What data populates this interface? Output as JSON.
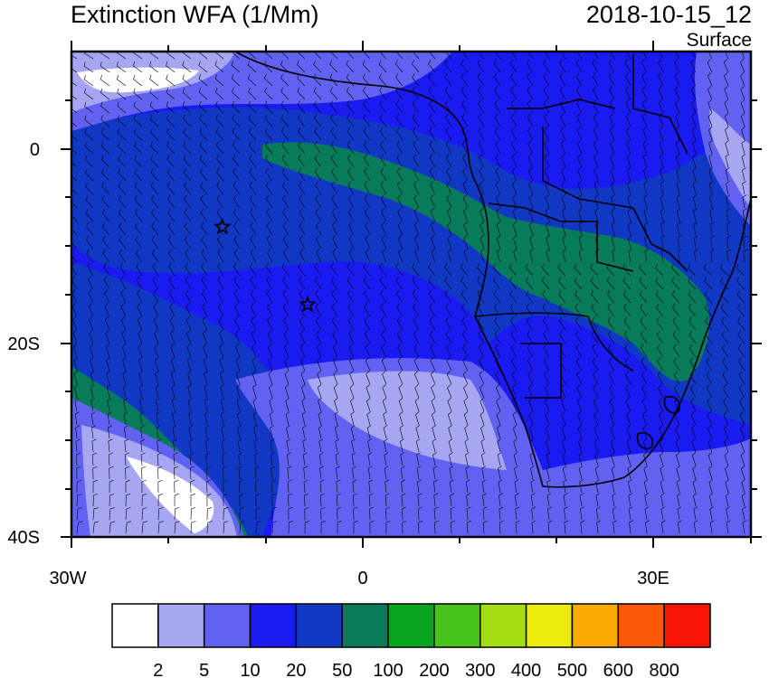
{
  "title_left": "Extinction WFA (1/Mm)",
  "title_right": "2018-10-15_12",
  "level_label": "Surface",
  "axes": {
    "lat_labels": [
      "0",
      "20S",
      "40S"
    ],
    "lon_labels": [
      "30W",
      "0",
      "30E"
    ]
  },
  "colorbar": {
    "colors": [
      "#ffffff",
      "#a6a6f2",
      "#6262f2",
      "#1a1af2",
      "#1038c4",
      "#087b5c",
      "#0aa51e",
      "#46c31c",
      "#a6dc14",
      "#ecec0c",
      "#fbaa04",
      "#fa5a06",
      "#fa1406"
    ],
    "labels": [
      "2",
      "5",
      "10",
      "20",
      "50",
      "100",
      "200",
      "300",
      "400",
      "500",
      "600",
      "800"
    ]
  },
  "markers": [
    {
      "name": "star-marker-1",
      "lon": -14.5,
      "lat": -8.0
    },
    {
      "name": "star-marker-2",
      "lon": -5.7,
      "lat": -16.0
    }
  ]
}
